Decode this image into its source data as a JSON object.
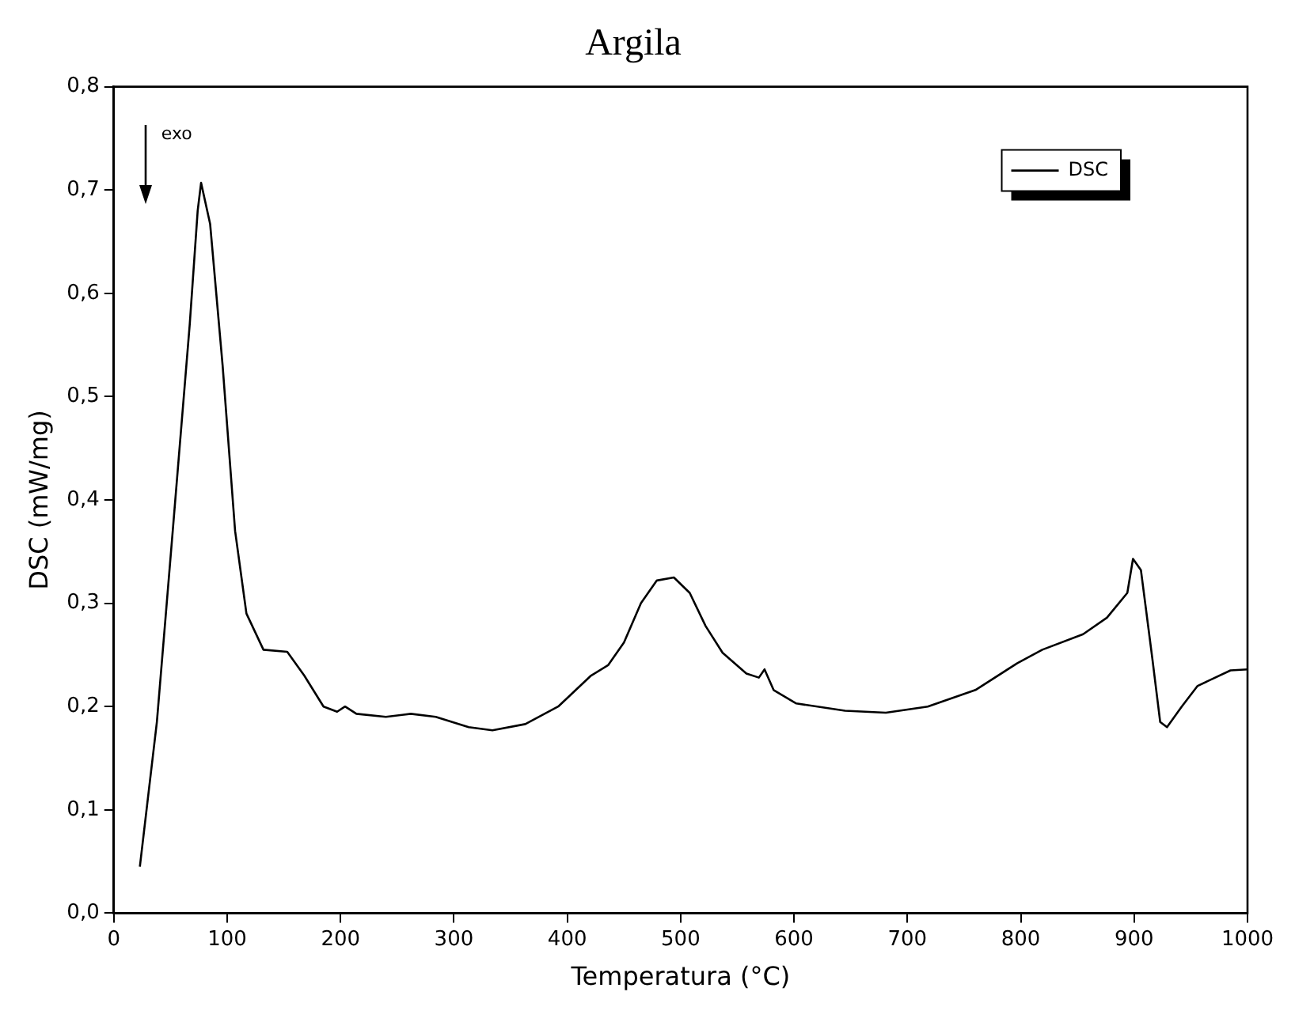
{
  "chart_data": {
    "type": "line",
    "title": "Argila",
    "xlabel": "Temperatura (°C)",
    "ylabel": "DSC (mW/mg)",
    "xlim": [
      0,
      1000
    ],
    "xticks": [
      0,
      100,
      200,
      300,
      400,
      500,
      600,
      700,
      800,
      900,
      1000
    ],
    "ylim": [
      0,
      0.8
    ],
    "yticks": [
      {
        "value": 0,
        "label": "0,0"
      },
      {
        "value": 0.1,
        "label": "0,1"
      },
      {
        "value": 0.2,
        "label": "0,2"
      },
      {
        "value": 0.3,
        "label": "0,3"
      },
      {
        "value": 0.4,
        "label": "0,4"
      },
      {
        "value": 0.5,
        "label": "0,5"
      },
      {
        "value": 0.6,
        "label": "0,6"
      },
      {
        "value": 0.7,
        "label": "0,7"
      },
      {
        "value": 0.8,
        "label": "0,8"
      }
    ],
    "grid": false,
    "legend": "top right",
    "marker": "none",
    "line_style": "solid",
    "annotations": [
      "exo"
    ],
    "series": [
      {
        "name": "DSC",
        "color": "#000000",
        "x": [
          23,
          38,
          52,
          67,
          74,
          77,
          85,
          96,
          107,
          117,
          132,
          153,
          168,
          185,
          197,
          204,
          214,
          240,
          262,
          284,
          313,
          334,
          363,
          392,
          421,
          436,
          450,
          465,
          479,
          494,
          508,
          522,
          537,
          558,
          569,
          574,
          582,
          602,
          645,
          681,
          718,
          760,
          797,
          819,
          855,
          876,
          894,
          899,
          906,
          916,
          923,
          929,
          942,
          956,
          985,
          1000
        ],
        "values": [
          0.045,
          0.185,
          0.37,
          0.57,
          0.68,
          0.707,
          0.667,
          0.53,
          0.37,
          0.29,
          0.255,
          0.253,
          0.23,
          0.2,
          0.195,
          0.2,
          0.193,
          0.19,
          0.193,
          0.19,
          0.18,
          0.177,
          0.183,
          0.2,
          0.23,
          0.24,
          0.262,
          0.3,
          0.322,
          0.325,
          0.31,
          0.278,
          0.252,
          0.232,
          0.228,
          0.236,
          0.216,
          0.203,
          0.196,
          0.194,
          0.2,
          0.216,
          0.242,
          0.255,
          0.27,
          0.286,
          0.31,
          0.343,
          0.332,
          0.247,
          0.185,
          0.18,
          0.2,
          0.22,
          0.235,
          0.236
        ]
      }
    ]
  }
}
